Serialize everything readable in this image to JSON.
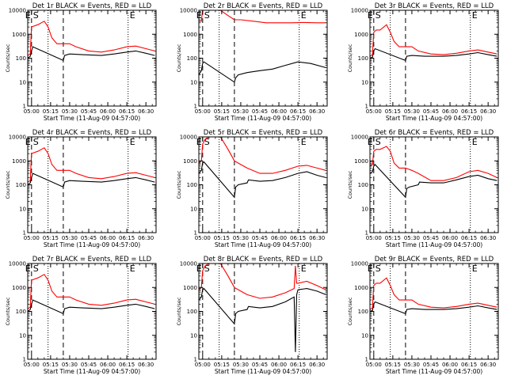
{
  "figure": {
    "panel_titles": [
      "Det 1r BLACK = Events, RED = LLD",
      "Det 2r BLACK = Events, RED = LLD",
      "Det 3r BLACK = Events, RED = LLD",
      "Det 4r BLACK = Events, RED = LLD",
      "Det 5r BLACK = Events, RED = LLD",
      "Det 6r BLACK = Events, RED = LLD",
      "Det 7r BLACK = Events, RED = LLD",
      "Det 8r BLACK = Events, RED = LLD",
      "Det 9r BLACK = Events, RED = LLD"
    ],
    "xlabel": "Start Time (11-Aug-09 04:57:00)",
    "ylabel": "Counts/sec",
    "marker_labels": [
      "E",
      "S",
      "E"
    ],
    "colors": {
      "events": "#000000",
      "lld": "#ff0000",
      "axes": "#000000"
    }
  },
  "chart_data": {
    "type": "line",
    "x_tick_labels": [
      "05:00",
      "05:15",
      "05:30",
      "05:45",
      "06:00",
      "06:15",
      "06:30"
    ],
    "x_tick_hours": [
      5.0,
      5.25,
      5.5,
      5.75,
      6.0,
      6.25,
      6.5
    ],
    "xlim": [
      "04:57",
      "06:38"
    ],
    "y_scale": "log",
    "y_tick_labels": [
      "1",
      "10",
      "100",
      "1000",
      "10000"
    ],
    "ylim": [
      1,
      10000
    ],
    "dashed_lines": [
      "05:00",
      "05:25"
    ],
    "dotted_lines": [
      "05:13",
      "06:16"
    ],
    "grid": false,
    "panels": [
      {
        "name": "Det 1r",
        "lld": {
          "x": [
            "04:57",
            "04:59",
            "05:00",
            "05:02",
            "05:05",
            "05:10",
            "05:13",
            "05:16",
            "05:20",
            "05:25",
            "05:30",
            "05:35",
            "05:45",
            "05:55",
            "06:05",
            "06:15",
            "06:22",
            "06:30",
            "06:37"
          ],
          "y": [
            130,
            150,
            2000,
            2200,
            2500,
            3500,
            2000,
            700,
            400,
            400,
            400,
            300,
            200,
            180,
            220,
            300,
            320,
            250,
            200
          ]
        },
        "events": {
          "x": [
            "04:57",
            "04:59",
            "05:00",
            "05:01",
            "05:25",
            "05:26",
            "05:30",
            "05:40",
            "05:55",
            "06:05",
            "06:15",
            "06:22",
            "06:30",
            "06:37"
          ],
          "y": [
            100,
            120,
            200,
            300,
            80,
            130,
            150,
            140,
            130,
            150,
            180,
            200,
            160,
            130
          ]
        }
      },
      {
        "name": "Det 2r",
        "lld": {
          "x": [
            "04:57",
            "04:59",
            "05:00",
            "05:03",
            "05:05",
            "05:10",
            "05:14",
            "05:20",
            "05:25",
            "05:30",
            "05:40",
            "05:50",
            "06:00",
            "06:10",
            "06:20",
            "06:30",
            "06:37"
          ],
          "y": [
            3500,
            3500,
            10000,
            10000,
            10000,
            10000,
            10000,
            6000,
            4000,
            4000,
            3500,
            3000,
            3000,
            3000,
            3100,
            3000,
            3000
          ]
        },
        "events": {
          "x": [
            "04:57",
            "04:59",
            "05:00",
            "05:01",
            "05:25",
            "05:26",
            "05:28",
            "05:35",
            "05:45",
            "05:55",
            "06:05",
            "06:15",
            "06:25",
            "06:37"
          ],
          "y": [
            20,
            30,
            60,
            70,
            10,
            15,
            20,
            25,
            30,
            35,
            50,
            70,
            60,
            40
          ]
        }
      },
      {
        "name": "Det 3r",
        "lld": {
          "x": [
            "04:57",
            "04:59",
            "05:00",
            "05:02",
            "05:05",
            "05:10",
            "05:13",
            "05:16",
            "05:20",
            "05:25",
            "05:30",
            "05:35",
            "05:45",
            "05:55",
            "06:05",
            "06:15",
            "06:22",
            "06:30",
            "06:37"
          ],
          "y": [
            120,
            140,
            1200,
            1500,
            1500,
            2500,
            1200,
            500,
            300,
            300,
            300,
            200,
            150,
            140,
            160,
            200,
            220,
            180,
            150
          ]
        },
        "events": {
          "x": [
            "04:57",
            "04:59",
            "05:00",
            "05:01",
            "05:25",
            "05:26",
            "05:30",
            "05:40",
            "05:55",
            "06:05",
            "06:15",
            "06:22",
            "06:30",
            "06:37"
          ],
          "y": [
            100,
            110,
            200,
            250,
            80,
            120,
            130,
            120,
            120,
            130,
            150,
            170,
            140,
            120
          ]
        }
      },
      {
        "name": "Det 4r",
        "lld": {
          "x": [
            "04:57",
            "04:59",
            "05:00",
            "05:02",
            "05:05",
            "05:10",
            "05:13",
            "05:16",
            "05:20",
            "05:25",
            "05:30",
            "05:35",
            "05:45",
            "05:55",
            "06:05",
            "06:15",
            "06:22",
            "06:30",
            "06:37"
          ],
          "y": [
            130,
            150,
            2000,
            2200,
            2500,
            3500,
            2000,
            700,
            400,
            400,
            400,
            300,
            200,
            180,
            220,
            300,
            320,
            250,
            200
          ]
        },
        "events": {
          "x": [
            "04:57",
            "04:59",
            "05:00",
            "05:01",
            "05:25",
            "05:26",
            "05:30",
            "05:40",
            "05:55",
            "06:05",
            "06:15",
            "06:22",
            "06:30",
            "06:37"
          ],
          "y": [
            100,
            120,
            200,
            300,
            80,
            130,
            150,
            140,
            130,
            150,
            180,
            200,
            160,
            130
          ]
        }
      },
      {
        "name": "Det 5r",
        "lld": {
          "x": [
            "04:57",
            "04:59",
            "05:00",
            "05:02",
            "05:05",
            "05:10",
            "05:14",
            "05:20",
            "05:25",
            "05:30",
            "05:35",
            "05:45",
            "05:55",
            "06:05",
            "06:15",
            "06:22",
            "06:30",
            "06:37"
          ],
          "y": [
            800,
            1000,
            5000,
            8000,
            10000,
            10000,
            10000,
            3000,
            1000,
            700,
            500,
            300,
            300,
            400,
            600,
            650,
            500,
            400
          ]
        },
        "events": {
          "x": [
            "04:57",
            "04:59",
            "05:00",
            "05:01",
            "05:25",
            "05:26",
            "05:28",
            "05:35",
            "05:36",
            "05:45",
            "05:55",
            "06:05",
            "06:15",
            "06:22",
            "06:30",
            "06:37"
          ],
          "y": [
            300,
            400,
            800,
            900,
            30,
            80,
            100,
            120,
            160,
            140,
            150,
            200,
            300,
            350,
            250,
            200
          ]
        }
      },
      {
        "name": "Det 6r",
        "lld": {
          "x": [
            "04:57",
            "04:59",
            "05:00",
            "05:02",
            "05:05",
            "05:10",
            "05:13",
            "05:16",
            "05:20",
            "05:25",
            "05:30",
            "05:35",
            "05:45",
            "05:55",
            "06:05",
            "06:15",
            "06:22",
            "06:30",
            "06:37"
          ],
          "y": [
            600,
            700,
            2500,
            3000,
            3000,
            4000,
            2500,
            800,
            500,
            500,
            400,
            300,
            150,
            150,
            200,
            350,
            400,
            300,
            200
          ]
        },
        "events": {
          "x": [
            "04:57",
            "04:59",
            "05:00",
            "05:01",
            "05:25",
            "05:26",
            "05:28",
            "05:35",
            "05:36",
            "05:45",
            "05:55",
            "06:05",
            "06:15",
            "06:22",
            "06:30",
            "06:37"
          ],
          "y": [
            300,
            350,
            600,
            700,
            30,
            70,
            80,
            100,
            130,
            120,
            120,
            160,
            220,
            250,
            180,
            150
          ]
        }
      },
      {
        "name": "Det 7r",
        "lld": {
          "x": [
            "04:57",
            "04:59",
            "05:00",
            "05:02",
            "05:05",
            "05:10",
            "05:13",
            "05:16",
            "05:20",
            "05:25",
            "05:30",
            "05:35",
            "05:45",
            "05:55",
            "06:05",
            "06:15",
            "06:22",
            "06:30",
            "06:37"
          ],
          "y": [
            130,
            150,
            2000,
            2200,
            2500,
            3500,
            2000,
            700,
            400,
            400,
            400,
            300,
            200,
            180,
            220,
            300,
            320,
            250,
            200
          ]
        },
        "events": {
          "x": [
            "04:57",
            "04:59",
            "05:00",
            "05:01",
            "05:25",
            "05:26",
            "05:30",
            "05:40",
            "05:55",
            "06:05",
            "06:15",
            "06:22",
            "06:30",
            "06:37"
          ],
          "y": [
            100,
            120,
            200,
            300,
            80,
            130,
            150,
            140,
            130,
            150,
            180,
            200,
            160,
            130
          ]
        }
      },
      {
        "name": "Det 8r",
        "lld": {
          "x": [
            "04:57",
            "04:59",
            "05:00",
            "05:02",
            "05:05",
            "05:10",
            "05:14",
            "05:20",
            "05:25",
            "05:30",
            "05:35",
            "05:45",
            "05:55",
            "06:05",
            "06:12",
            "06:13",
            "06:14",
            "06:15",
            "06:22",
            "06:30",
            "06:37"
          ],
          "y": [
            800,
            1000,
            5000,
            8000,
            10000,
            10000,
            10000,
            3000,
            1000,
            700,
            500,
            350,
            400,
            600,
            900,
            8000,
            1500,
            1500,
            1800,
            1200,
            800
          ]
        },
        "events": {
          "x": [
            "04:57",
            "04:59",
            "05:00",
            "05:01",
            "05:25",
            "05:26",
            "05:28",
            "05:35",
            "05:36",
            "05:45",
            "05:55",
            "06:05",
            "06:12",
            "06:13",
            "06:14",
            "06:15",
            "06:22",
            "06:30",
            "06:37"
          ],
          "y": [
            300,
            400,
            800,
            900,
            30,
            80,
            100,
            120,
            160,
            140,
            160,
            250,
            400,
            2,
            500,
            800,
            900,
            700,
            500
          ]
        }
      },
      {
        "name": "Det 9r",
        "lld": {
          "x": [
            "04:57",
            "04:59",
            "05:00",
            "05:02",
            "05:05",
            "05:10",
            "05:13",
            "05:16",
            "05:20",
            "05:25",
            "05:30",
            "05:35",
            "05:45",
            "05:55",
            "06:05",
            "06:15",
            "06:22",
            "06:30",
            "06:37"
          ],
          "y": [
            120,
            140,
            1200,
            1500,
            1500,
            2500,
            1200,
            500,
            300,
            300,
            300,
            200,
            150,
            140,
            160,
            200,
            220,
            180,
            150
          ]
        },
        "events": {
          "x": [
            "04:57",
            "04:59",
            "05:00",
            "05:01",
            "05:25",
            "05:26",
            "05:30",
            "05:40",
            "05:55",
            "06:05",
            "06:15",
            "06:22",
            "06:30",
            "06:37"
          ],
          "y": [
            100,
            110,
            200,
            250,
            80,
            120,
            130,
            120,
            120,
            130,
            150,
            170,
            140,
            120
          ]
        }
      }
    ]
  }
}
